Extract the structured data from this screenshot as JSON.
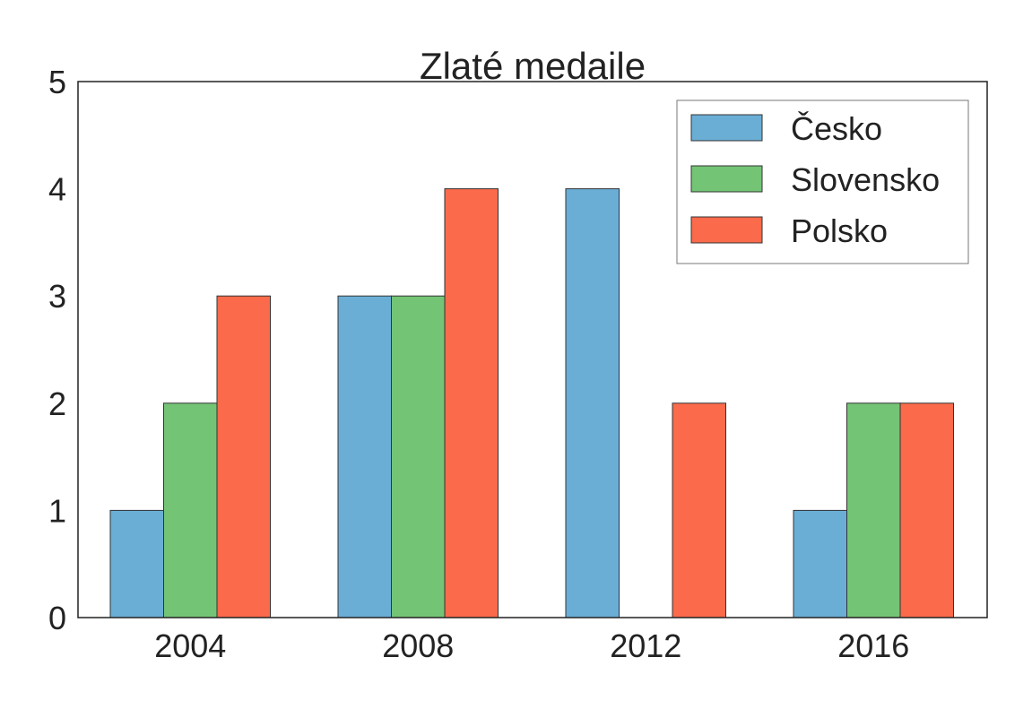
{
  "chart_data": {
    "type": "bar",
    "title": "Zlaté medaile",
    "xlabel": "",
    "ylabel": "",
    "categories": [
      "2004",
      "2008",
      "2012",
      "2016"
    ],
    "series": [
      {
        "name": "Česko",
        "color": "#6aaed6",
        "values": [
          1,
          3,
          4,
          1
        ]
      },
      {
        "name": "Slovensko",
        "color": "#74c476",
        "values": [
          2,
          3,
          0,
          2
        ]
      },
      {
        "name": "Polsko",
        "color": "#fb6a4a",
        "values": [
          3,
          4,
          2,
          2
        ]
      }
    ],
    "ylim": [
      0,
      5
    ],
    "yticks": [
      "0",
      "1",
      "2",
      "3",
      "4",
      "5"
    ],
    "grid": false,
    "legend_position": "top-right"
  }
}
